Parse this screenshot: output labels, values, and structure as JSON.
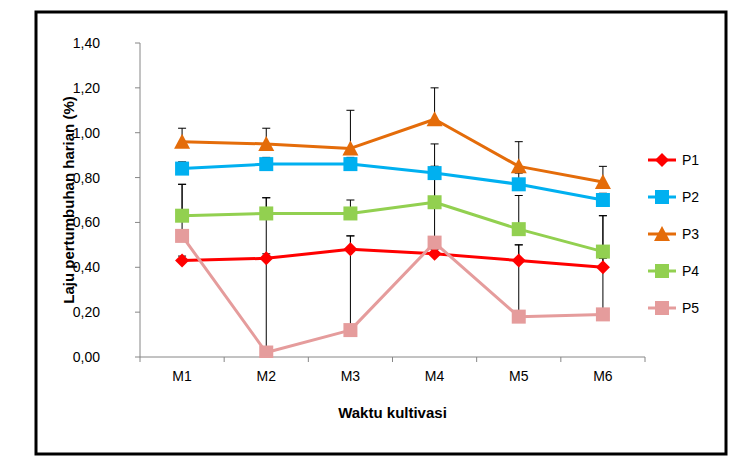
{
  "chart_data": {
    "type": "line",
    "x_label": "Waktu kultivasi",
    "y_label": "Laju pertumbuhan harian (%)",
    "categories": [
      "M1",
      "M2",
      "M3",
      "M4",
      "M5",
      "M6"
    ],
    "ylim": [
      0,
      1.4
    ],
    "yticks": [
      {
        "value": 0,
        "label": "0,00"
      },
      {
        "value": 0.2,
        "label": "0,20"
      },
      {
        "value": 0.4,
        "label": "0,40"
      },
      {
        "value": 0.6,
        "label": "0,60"
      },
      {
        "value": 0.8,
        "label": "0,80"
      },
      {
        "value": 1.0,
        "label": "1,00"
      },
      {
        "value": 1.2,
        "label": "1,20"
      },
      {
        "value": 1.4,
        "label": "1,40"
      }
    ],
    "grid": false,
    "legend": "right",
    "series": [
      {
        "name": "P1",
        "color": "#ff0000",
        "marker": "diamond",
        "values": [
          0.43,
          0.44,
          0.48,
          0.46,
          0.43,
          0.4
        ],
        "errors": [
          0.02,
          0.02,
          0.06,
          0.02,
          0.07,
          0.04
        ]
      },
      {
        "name": "P2",
        "color": "#00b0f0",
        "marker": "square",
        "values": [
          0.84,
          0.86,
          0.86,
          0.82,
          0.77,
          0.7
        ],
        "errors": [
          0.03,
          0.03,
          0.03,
          0.13,
          0.05,
          0.03
        ]
      },
      {
        "name": "P3",
        "color": "#e46c0a",
        "marker": "triangle",
        "values": [
          0.96,
          0.95,
          0.93,
          1.06,
          0.85,
          0.78
        ],
        "errors": [
          0.06,
          0.07,
          0.17,
          0.14,
          0.11,
          0.07
        ]
      },
      {
        "name": "P4",
        "color": "#92d050",
        "marker": "square",
        "values": [
          0.63,
          0.64,
          0.64,
          0.69,
          0.57,
          0.47
        ],
        "errors": [
          0.14,
          0.07,
          0.06,
          0.16,
          0.15,
          0.16
        ]
      },
      {
        "name": "P5",
        "color": "#e59c9c",
        "marker": "square",
        "values": [
          0.54,
          0.02,
          0.12,
          0.51,
          0.18,
          0.19
        ],
        "errors": [
          0.23,
          0.69,
          0.42,
          0.34,
          0.32,
          0.44
        ]
      }
    ]
  }
}
